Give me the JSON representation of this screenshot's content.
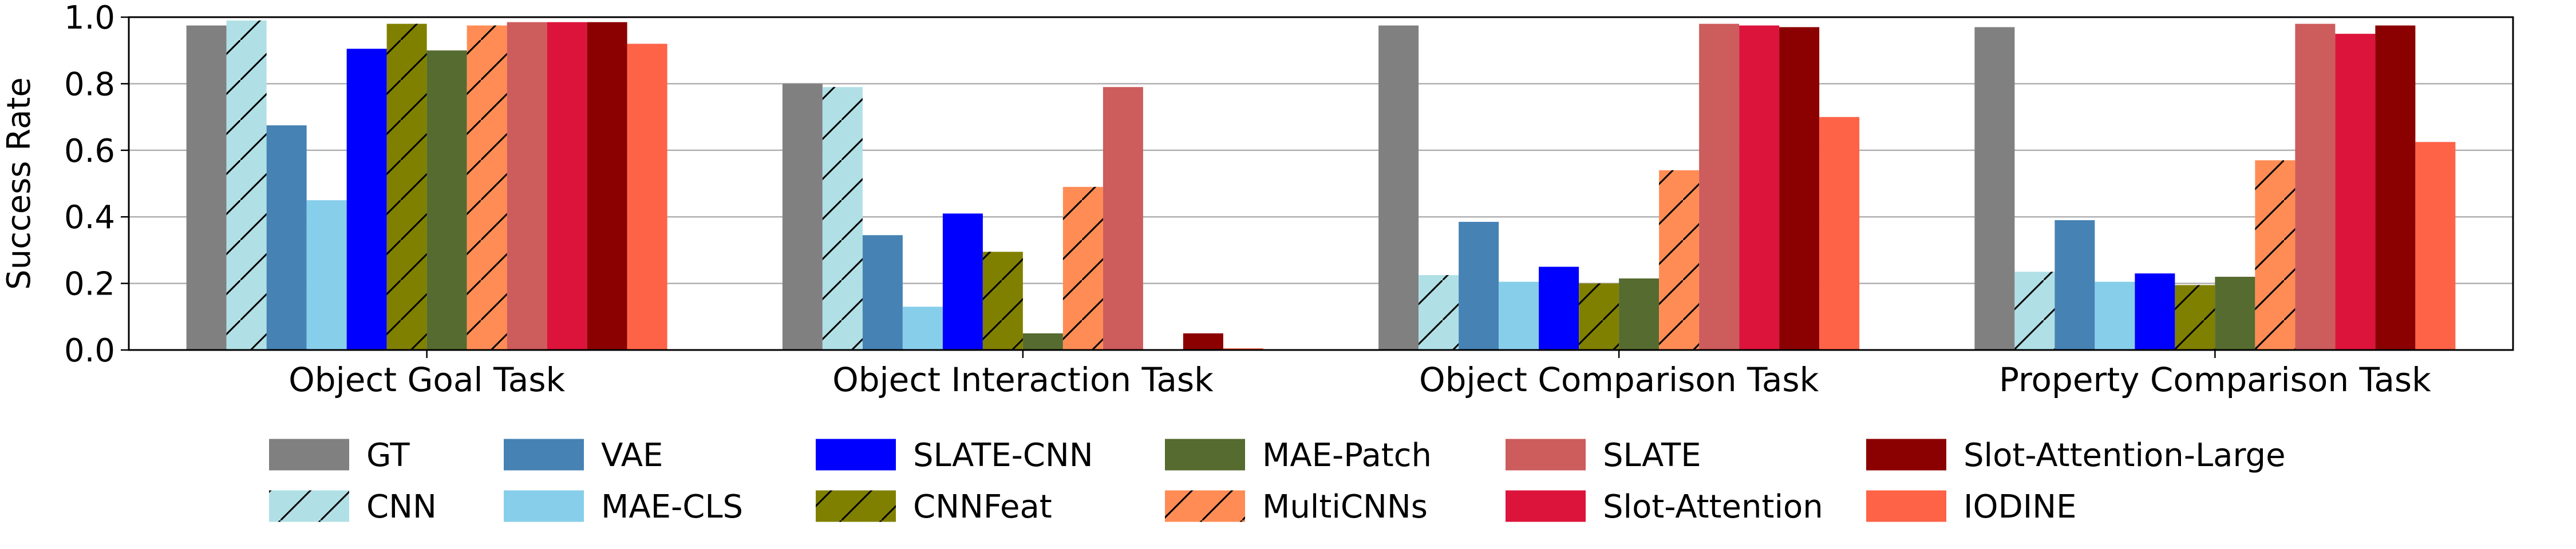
{
  "chart_data": {
    "type": "bar",
    "ylabel": "Success Rate",
    "ylim": [
      0,
      1.0
    ],
    "yticks": [
      "0.0",
      "0.2",
      "0.4",
      "0.6",
      "0.8",
      "1.0"
    ],
    "grid": "horizontal",
    "legend_position": "bottom",
    "categories": [
      "Object Goal Task",
      "Object Interaction Task",
      "Object Comparison Task",
      "Property Comparison Task"
    ],
    "series": [
      {
        "name": "GT",
        "color": "#808080",
        "hatch": false,
        "values": [
          0.975,
          0.8,
          0.975,
          0.97
        ]
      },
      {
        "name": "CNN",
        "color": "#b0e0e6",
        "hatch": true,
        "values": [
          0.99,
          0.79,
          0.225,
          0.235
        ]
      },
      {
        "name": "VAE",
        "color": "#4682b4",
        "hatch": false,
        "values": [
          0.675,
          0.345,
          0.385,
          0.39
        ]
      },
      {
        "name": "MAE-CLS",
        "color": "#87ceeb",
        "hatch": false,
        "values": [
          0.45,
          0.13,
          0.205,
          0.205
        ]
      },
      {
        "name": "SLATE-CNN",
        "color": "#0000ff",
        "hatch": false,
        "values": [
          0.905,
          0.41,
          0.25,
          0.23
        ]
      },
      {
        "name": "CNNFeat",
        "color": "#808000",
        "hatch": true,
        "values": [
          0.98,
          0.295,
          0.2,
          0.195
        ]
      },
      {
        "name": "MAE-Patch",
        "color": "#556b2f",
        "hatch": false,
        "values": [
          0.9,
          0.05,
          0.215,
          0.22
        ]
      },
      {
        "name": "MultiCNNs",
        "color": "#ff8c55",
        "hatch": true,
        "values": [
          0.975,
          0.49,
          0.54,
          0.57
        ]
      },
      {
        "name": "SLATE",
        "color": "#cd5c5c",
        "hatch": false,
        "values": [
          0.985,
          0.79,
          0.98,
          0.98
        ]
      },
      {
        "name": "Slot-Attention",
        "color": "#dc143c",
        "hatch": false,
        "values": [
          0.985,
          0.0,
          0.975,
          0.95
        ]
      },
      {
        "name": "Slot-Attention-Large",
        "color": "#8b0000",
        "hatch": false,
        "values": [
          0.985,
          0.05,
          0.97,
          0.975
        ]
      },
      {
        "name": "IODINE",
        "color": "#ff6347",
        "hatch": false,
        "values": [
          0.92,
          0.005,
          0.7,
          0.625
        ]
      }
    ]
  }
}
